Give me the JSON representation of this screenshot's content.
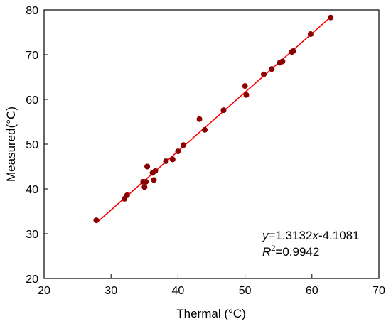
{
  "chart_data": {
    "type": "scatter",
    "title": "",
    "xlabel": "Thermal (°C)",
    "ylabel": "Measured(°C)",
    "xlim": [
      20,
      70
    ],
    "ylim": [
      20,
      80
    ],
    "xticks": [
      20,
      30,
      40,
      50,
      60,
      70
    ],
    "yticks": [
      20,
      30,
      40,
      50,
      60,
      70,
      80
    ],
    "grid": false,
    "series": [
      {
        "type": "scatter",
        "color": "#8b0000",
        "points": [
          [
            27.8,
            33.0
          ],
          [
            32.0,
            37.8
          ],
          [
            32.4,
            38.6
          ],
          [
            34.8,
            41.6
          ],
          [
            35.0,
            40.4
          ],
          [
            35.2,
            41.6
          ],
          [
            35.4,
            45.0
          ],
          [
            36.2,
            43.6
          ],
          [
            36.4,
            42.0
          ],
          [
            36.6,
            44.0
          ],
          [
            38.2,
            46.2
          ],
          [
            39.2,
            46.6
          ],
          [
            40.0,
            48.4
          ],
          [
            40.8,
            49.8
          ],
          [
            43.2,
            55.6
          ],
          [
            44.0,
            53.2
          ],
          [
            46.8,
            57.6
          ],
          [
            50.0,
            63.0
          ],
          [
            50.2,
            61.0
          ],
          [
            52.8,
            65.6
          ],
          [
            54.0,
            66.8
          ],
          [
            55.2,
            68.2
          ],
          [
            55.6,
            68.5
          ],
          [
            57.0,
            70.6
          ],
          [
            57.2,
            70.8
          ],
          [
            59.8,
            74.6
          ],
          [
            62.8,
            78.3
          ]
        ]
      },
      {
        "type": "line",
        "color": "#ff0000",
        "x": [
          27.8,
          62.8
        ],
        "y": [
          32.4,
          78.4
        ]
      }
    ],
    "annotations": {
      "equation": {
        "y": "y",
        "eq_mid": "=1.3132",
        "x": "x",
        "eq_end": "-4.1081"
      },
      "r2": {
        "r": "R",
        "sup": "2",
        "value": "=0.9942"
      }
    }
  }
}
